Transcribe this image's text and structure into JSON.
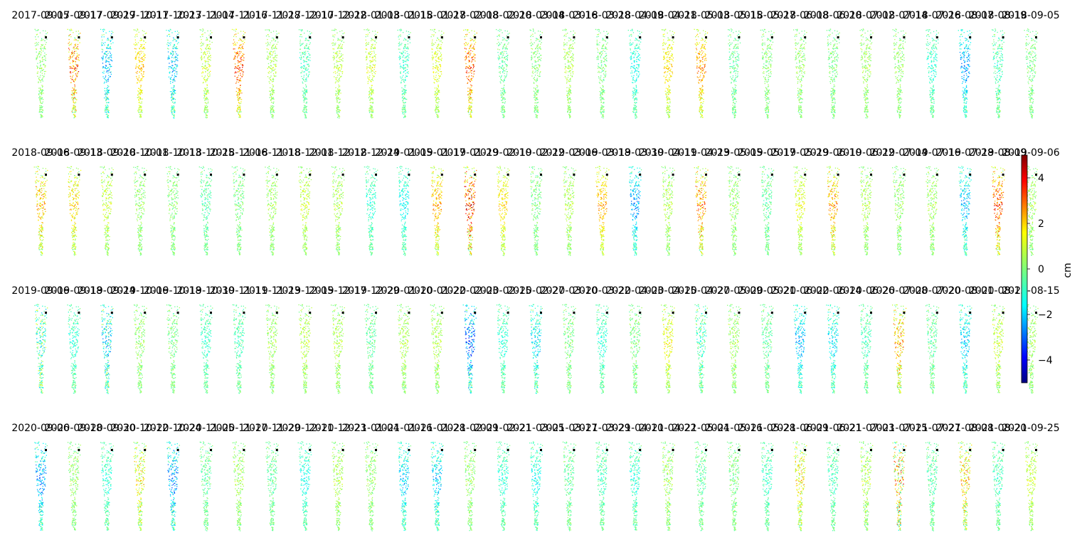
{
  "chart_data": {
    "type": "scatter",
    "description_rows": 4,
    "colormap": "jet",
    "clim": [
      -5,
      5
    ],
    "colorbar": {
      "label": "cm",
      "ticks": [
        "4",
        "2",
        "0",
        "−2",
        "−4"
      ],
      "tick_values": [
        4,
        2,
        0,
        -2,
        -4
      ]
    },
    "rows": [
      {
        "dates": [
          "2017-09-05",
          "2017-09-17",
          "2017-09-29",
          "2017-10-11",
          "2017-10-23",
          "2017-11-04",
          "2017-11-16",
          "2017-11-28",
          "2017-12-10",
          "2017-12-22",
          "2018-01-03",
          "2018-01-15",
          "2018-01-27",
          "2018-02-08",
          "2018-02-20",
          "2018-03-04",
          "2018-03-16",
          "2018-03-28",
          "2018-04-09",
          "2018-04-21",
          "2018-05-03",
          "2018-05-15",
          "2018-05-27",
          "2018-06-08",
          "2018-06-20",
          "2018-07-02",
          "2018-07-14",
          "2018-07-26",
          "2018-08-07",
          "2018-08-19",
          "2018-09-05"
        ],
        "mean": [
          0.2,
          2.0,
          -1.3,
          1.4,
          -1.2,
          0.6,
          2.3,
          0.4,
          -0.4,
          0.5,
          0.7,
          -0.5,
          0.8,
          2.2,
          -0.2,
          0.1,
          0.4,
          0.0,
          -0.8,
          1.2,
          1.8,
          -0.2,
          0.1,
          0.2,
          0.0,
          0.3,
          0.2,
          -0.6,
          -1.6,
          -0.4,
          0.0
        ],
        "amp": [
          1.0,
          2.8,
          2.2,
          1.2,
          2.2,
          1.2,
          2.0,
          1.0,
          1.0,
          1.0,
          1.2,
          1.0,
          1.0,
          2.2,
          1.0,
          1.0,
          1.0,
          1.0,
          1.0,
          1.2,
          1.6,
          1.0,
          1.0,
          1.0,
          1.0,
          1.0,
          1.0,
          1.0,
          1.6,
          1.2,
          1.0
        ]
      },
      {
        "dates": [
          "2018-09-06",
          "2018-09-13",
          "2018-09-20",
          "2018-10-01",
          "2018-10-13",
          "2018-10-25",
          "2018-11-06",
          "2018-11-18",
          "2018-12-01",
          "2018-12-12",
          "2018-12-24",
          "2019-01-05",
          "2019-01-17",
          "2019-01-29",
          "2019-02-10",
          "2019-02-22",
          "2019-03-06",
          "2019-03-18",
          "2019-03-30",
          "2019-04-11",
          "2019-04-23",
          "2019-05-05",
          "2019-05-17",
          "2019-05-29",
          "2019-06-10",
          "2019-06-22",
          "2019-07-04",
          "2019-07-16",
          "2019-07-28",
          "2019-08-09",
          "2019-09-06"
        ],
        "mean": [
          1.4,
          1.2,
          0.6,
          0.2,
          0.1,
          -0.3,
          0.0,
          0.3,
          0.6,
          0.4,
          -0.6,
          -0.9,
          1.6,
          2.6,
          1.2,
          0.0,
          0.4,
          1.6,
          -1.6,
          0.4,
          1.8,
          0.2,
          -0.2,
          0.8,
          1.6,
          0.4,
          0.2,
          0.3,
          -1.3,
          2.3,
          0.3
        ],
        "amp": [
          2.0,
          1.6,
          1.2,
          1.0,
          1.0,
          1.0,
          1.0,
          1.0,
          1.0,
          1.0,
          1.0,
          1.0,
          1.6,
          3.4,
          1.2,
          1.0,
          1.0,
          1.2,
          1.6,
          1.0,
          2.4,
          1.0,
          1.0,
          1.0,
          2.0,
          1.0,
          1.0,
          1.0,
          1.8,
          2.2,
          1.0
        ]
      },
      {
        "dates": [
          "2019-09-06",
          "2019-09-18",
          "2019-09-24",
          "2019-10-06",
          "2019-10-18",
          "2019-10-30",
          "2019-11-11",
          "2019-11-23",
          "2019-12-05",
          "2019-12-17",
          "2019-12-29",
          "2020-01-10",
          "2020-01-22",
          "2020-02-03",
          "2020-02-15",
          "2020-02-27",
          "2020-03-10",
          "2020-03-22",
          "2020-04-03",
          "2020-04-15",
          "2020-04-27",
          "2020-05-09",
          "2020-05-21",
          "2020-06-02",
          "2020-06-14",
          "2020-06-26",
          "2020-07-08",
          "2020-07-20",
          "2020-08-01",
          "2020-08-13",
          "2020-08-15"
        ],
        "mean": [
          -0.4,
          -0.6,
          -1.0,
          0.2,
          0.0,
          -0.5,
          -0.4,
          0.3,
          0.5,
          0.4,
          -0.2,
          0.4,
          0.4,
          -2.0,
          -0.6,
          -1.0,
          0.0,
          -0.6,
          0.0,
          0.9,
          -0.4,
          0.3,
          -0.2,
          -1.4,
          -1.0,
          -0.4,
          1.5,
          -0.2,
          -1.2,
          0.6,
          0.3
        ],
        "amp": [
          2.6,
          1.0,
          2.6,
          1.0,
          1.0,
          1.0,
          1.0,
          1.0,
          1.0,
          1.0,
          1.0,
          1.0,
          1.0,
          2.6,
          1.0,
          1.8,
          1.0,
          1.0,
          1.0,
          1.2,
          1.6,
          1.0,
          1.0,
          1.6,
          1.6,
          1.0,
          2.4,
          1.0,
          1.6,
          1.2,
          1.0
        ]
      },
      {
        "dates": [
          "2020-09-06",
          "2020-09-18",
          "2020-09-30",
          "2020-10-12",
          "2020-10-24",
          "2020-11-05",
          "2020-11-17",
          "2020-11-29",
          "2020-12-11",
          "2020-12-23",
          "2021-01-04",
          "2021-01-16",
          "2021-01-28",
          "2021-02-09",
          "2021-02-21",
          "2021-03-05",
          "2021-03-17",
          "2021-03-29",
          "2021-04-10",
          "2021-04-22",
          "2021-05-04",
          "2021-05-16",
          "2021-05-28",
          "2021-06-09",
          "2021-06-21",
          "2021-07-03",
          "2021-07-15",
          "2021-07-27",
          "2021-08-08",
          "2021-08-20",
          "2021-09-25"
        ],
        "mean": [
          -1.6,
          0.2,
          -0.6,
          0.9,
          -1.6,
          -0.2,
          0.3,
          -0.2,
          -0.8,
          0.4,
          0.2,
          -1.2,
          -1.2,
          0.2,
          -0.6,
          -0.8,
          -0.2,
          -0.4,
          -0.6,
          0.3,
          -0.2,
          0.0,
          -0.5,
          1.0,
          -0.4,
          0.4,
          1.2,
          -0.3,
          1.2,
          -0.4,
          0.6
        ],
        "amp": [
          2.0,
          1.0,
          1.0,
          2.0,
          2.2,
          1.0,
          1.0,
          1.0,
          1.0,
          1.0,
          1.0,
          1.6,
          1.8,
          1.0,
          1.0,
          1.2,
          1.0,
          1.0,
          1.2,
          1.2,
          1.0,
          1.0,
          1.0,
          2.0,
          1.0,
          1.2,
          4.0,
          1.0,
          2.4,
          1.0,
          1.0
        ]
      }
    ]
  }
}
